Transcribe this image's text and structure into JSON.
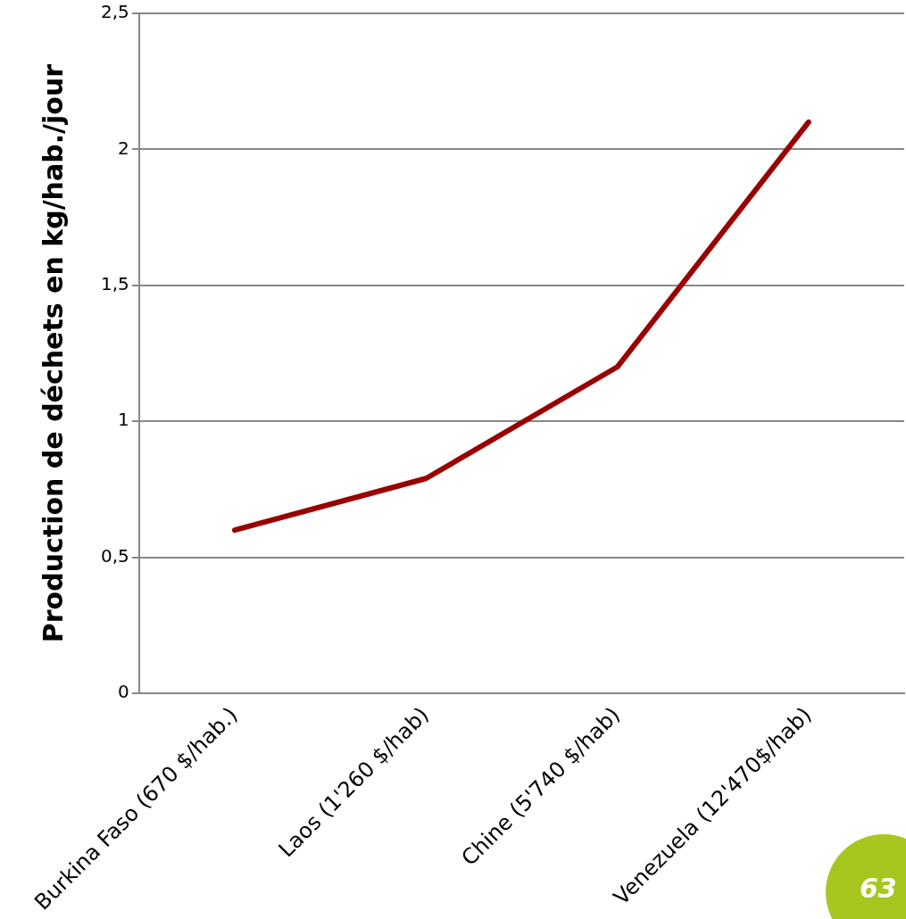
{
  "chart_data": {
    "type": "line",
    "ylabel": "Production de déchets en kg/hab./jour",
    "categories": [
      "Burkina Faso (670 $/hab.)",
      "Laos (1'260 $/hab)",
      "Chine (5'740 $/hab)",
      "Venezuela (12'470$/hab)"
    ],
    "series": [
      {
        "color": "#990000",
        "values": [
          0.6,
          0.79,
          1.2,
          2.1
        ]
      }
    ],
    "ylim": [
      0,
      2.5
    ],
    "yticks": [
      0,
      {
        "value": 0.5,
        "label": "0,5"
      },
      1,
      {
        "value": 1.5,
        "label": "1,5"
      },
      2,
      {
        "value": 2.5,
        "label": "2,5"
      }
    ],
    "grid": "y",
    "legend": false,
    "marker": "none",
    "line_style": "solid",
    "annotations": [
      "63"
    ]
  }
}
